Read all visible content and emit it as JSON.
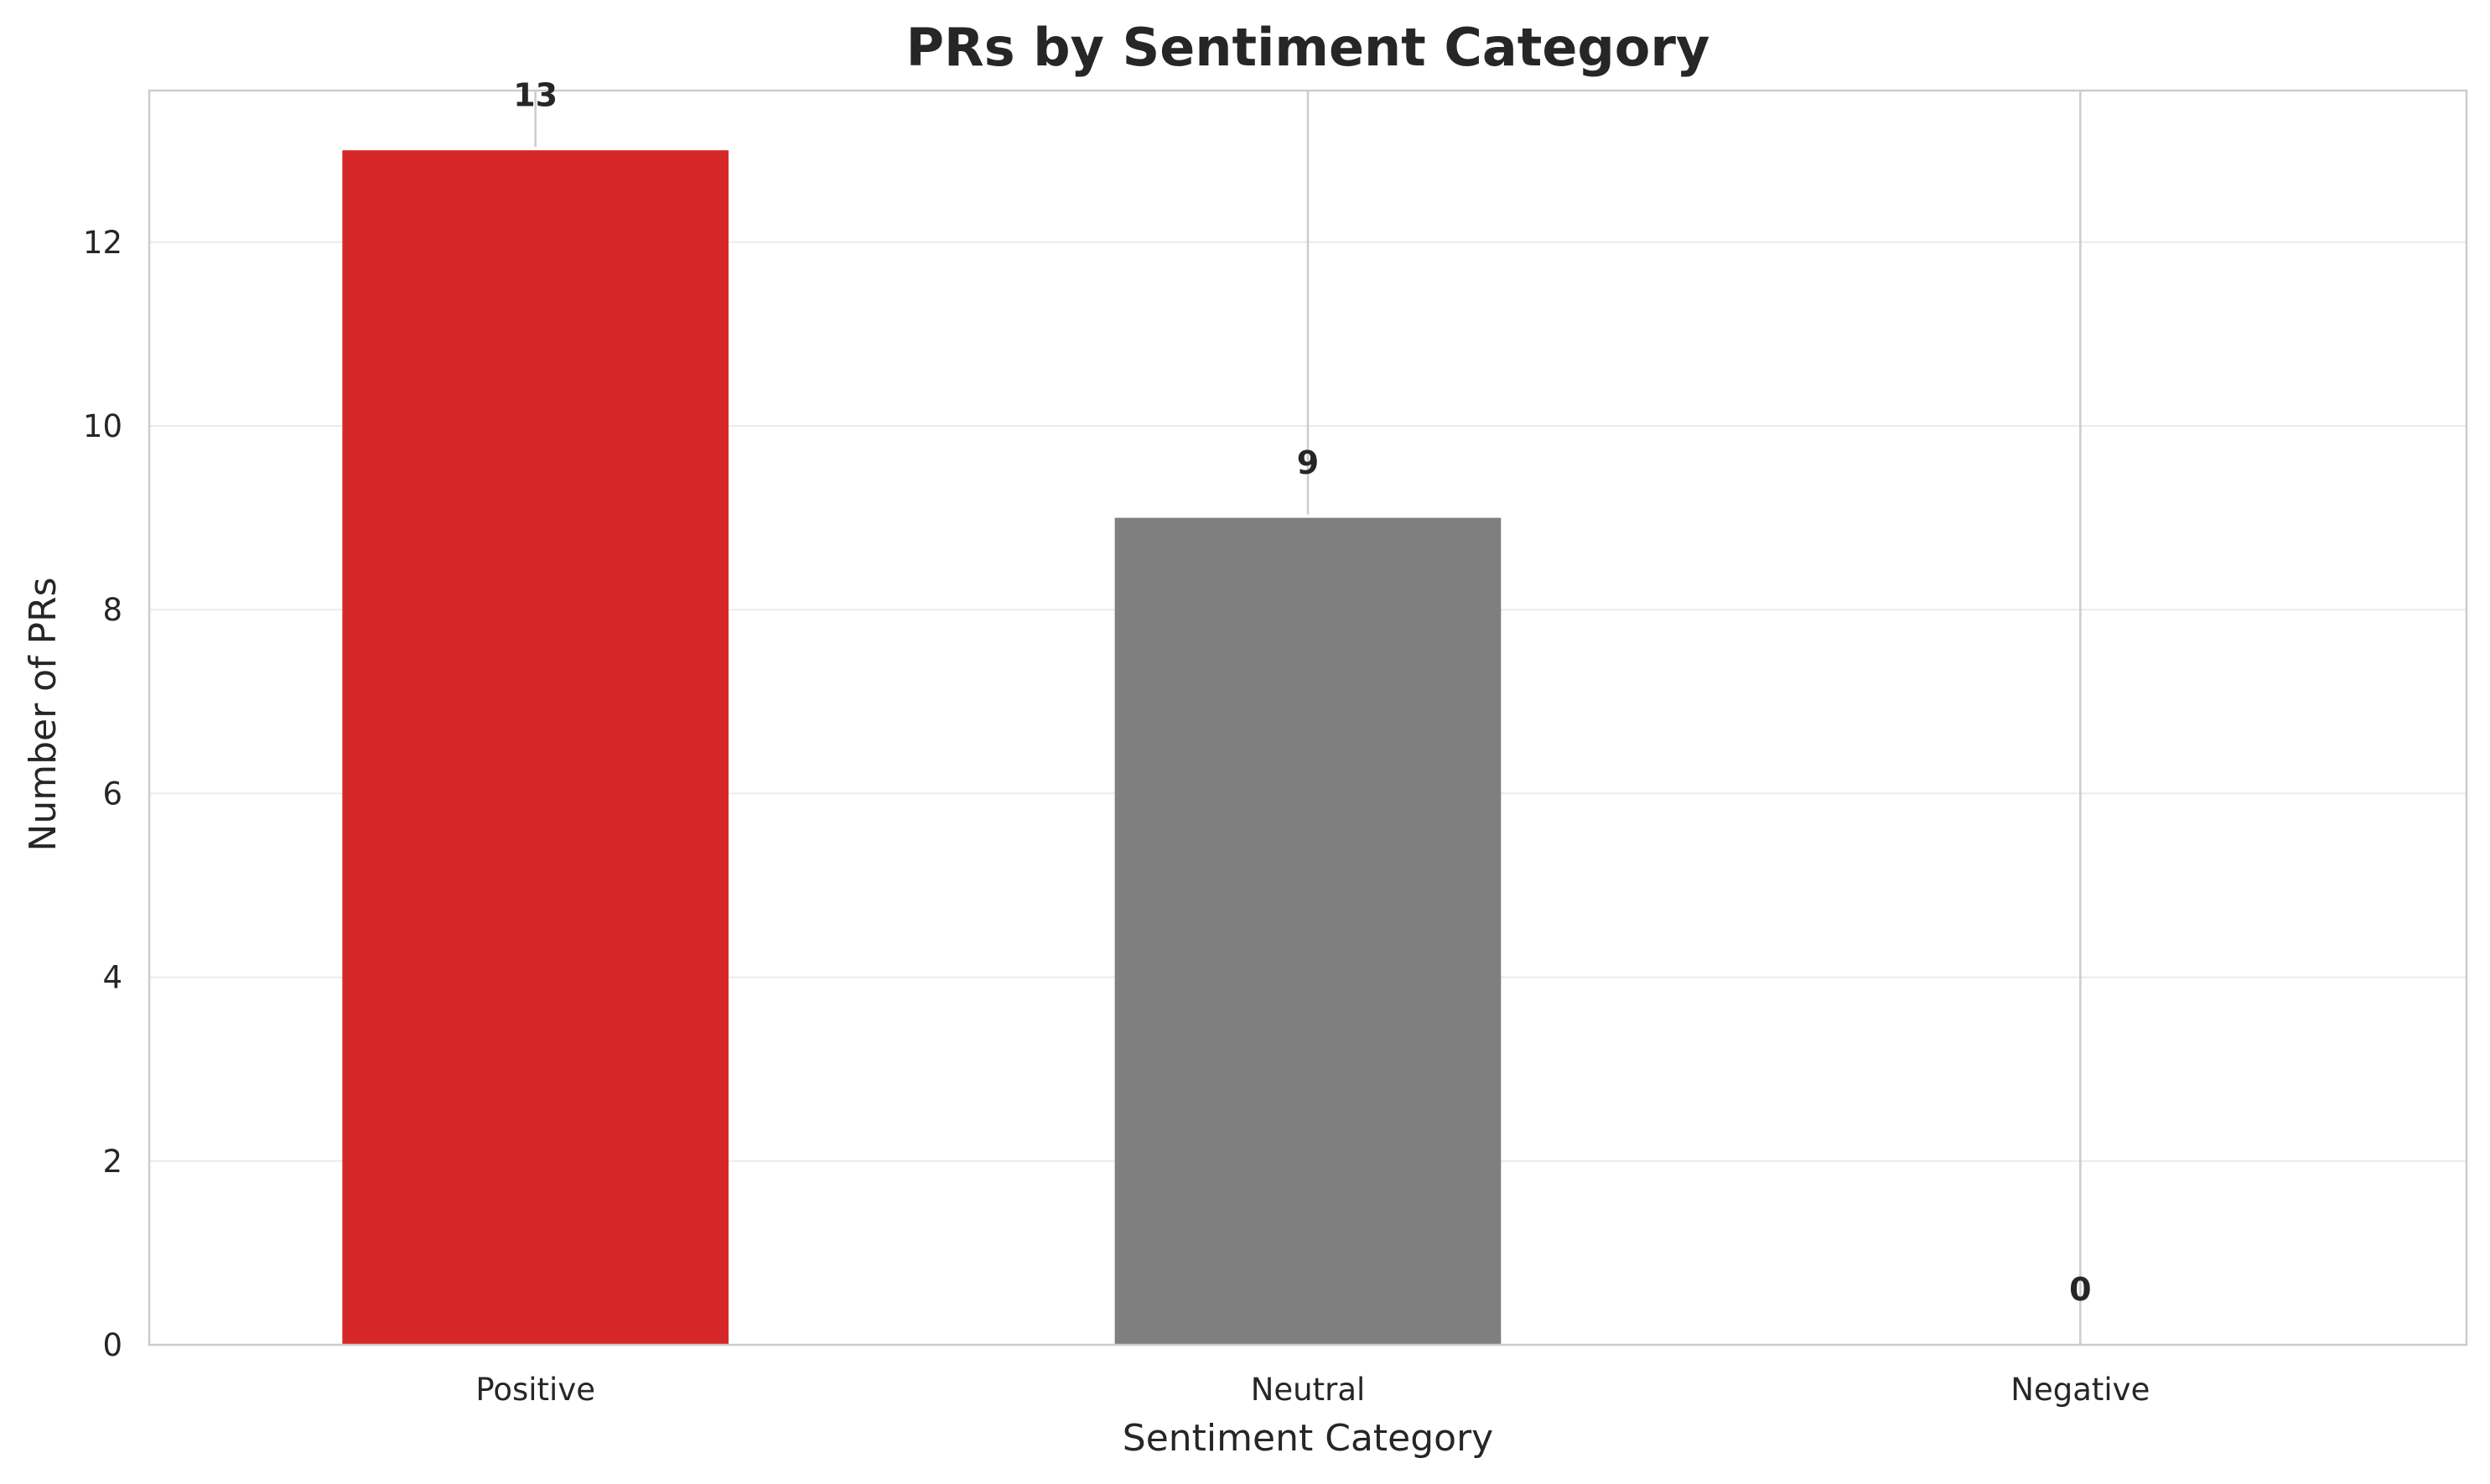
{
  "chart_data": {
    "type": "bar",
    "title": "PRs by Sentiment Category",
    "xlabel": "Sentiment Category",
    "ylabel": "Number of PRs",
    "categories": [
      "Positive",
      "Neutral",
      "Negative"
    ],
    "values": [
      13,
      9,
      0
    ],
    "value_labels": [
      "13",
      "9",
      "0"
    ],
    "bar_colors": [
      "#d62728",
      "#7f7f7f",
      "#2ca02c"
    ],
    "ylim": [
      0,
      13.65
    ],
    "yticks": [
      0,
      2,
      4,
      6,
      8,
      10,
      12
    ],
    "grid": true,
    "frame_color": "#cccccc",
    "grid_color": "#ebebeb"
  }
}
